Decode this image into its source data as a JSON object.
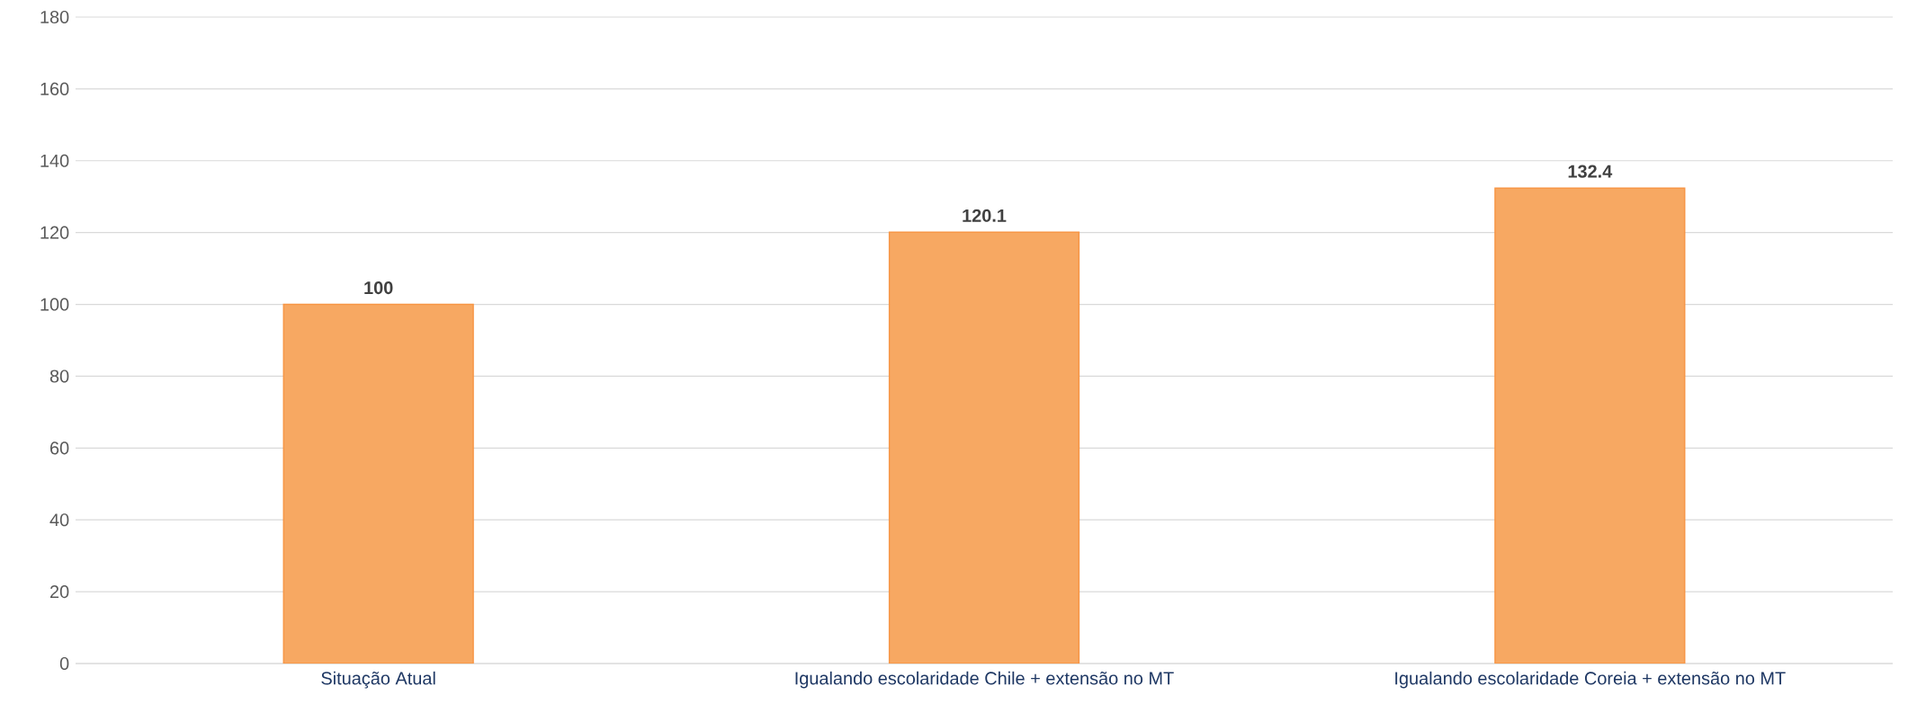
{
  "chart_data": {
    "type": "bar",
    "categories": [
      "Situação Atual",
      "Igualando escolaridade Chile + extensão no MT",
      "Igualando escolaridade Coreia + extensão no MT"
    ],
    "values": [
      100,
      120.1,
      132.4
    ],
    "color": "#f7a862",
    "ylim": [
      0,
      180
    ],
    "yticks": [
      0,
      20,
      40,
      60,
      80,
      100,
      120,
      140,
      160,
      180
    ],
    "grid": "y",
    "data_labels": true
  }
}
